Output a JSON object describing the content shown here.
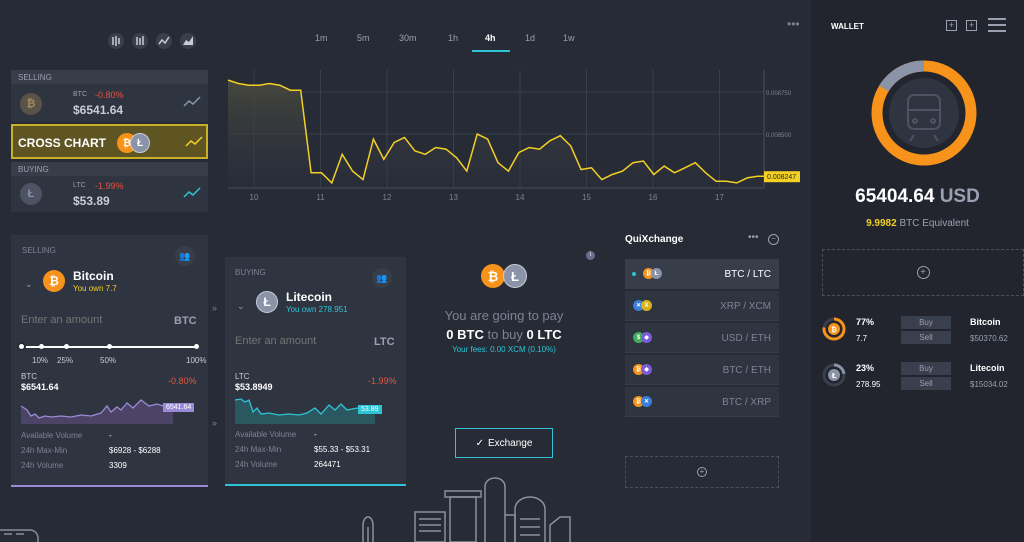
{
  "toolbar": {
    "timeframes": [
      "1m",
      "5m",
      "30m",
      "1h",
      "4h",
      "1d",
      "1w"
    ],
    "active_timeframe": "4h"
  },
  "sidebar": {
    "selling": {
      "header": "SELLING",
      "symbol": "BTC",
      "change": "-0.80%",
      "price": "$6541.64"
    },
    "cross_chart": {
      "label": "CROSS CHART"
    },
    "buying": {
      "header": "BUYING",
      "symbol": "LTC",
      "change": "-1.99%",
      "price": "$53.89"
    }
  },
  "chart_data": {
    "type": "line",
    "x_ticks": [
      "10",
      "11",
      "12",
      "13",
      "14",
      "15",
      "16",
      "17"
    ],
    "y_ticks": [
      "0.008750",
      "0.008500"
    ],
    "current_label": "0.008247",
    "series": [
      {
        "values": [
          0.00882,
          0.0088,
          0.00879,
          0.00879,
          0.0088,
          0.00879,
          0.00876,
          0.00876,
          0.00827,
          0.00827,
          0.00821,
          0.00838,
          0.00828,
          0.00823,
          0.00847,
          0.00835,
          0.00845,
          0.00848,
          0.0084,
          0.00838,
          0.00842,
          0.00841,
          0.00836,
          0.00828,
          0.0085,
          0.00847,
          0.00833,
          0.00828,
          0.00839,
          0.00842,
          0.00841,
          0.00846,
          0.00849,
          0.00843,
          0.00829,
          0.0083,
          0.00823,
          0.00826,
          0.00828,
          0.00833,
          0.00834,
          0.00826,
          0.00831,
          0.00827,
          0.0083,
          0.00833,
          0.00827,
          0.00822,
          0.00822,
          0.00821,
          0.00824,
          0.00825,
          0.00825
        ]
      }
    ]
  },
  "sell_card": {
    "header": "SELLING",
    "coin": "Bitcoin",
    "own": "You own 7.7",
    "amount_placeholder": "Enter an amount",
    "unit": "BTC",
    "slider_labels": [
      "10%",
      "25%",
      "50%",
      "100%"
    ],
    "symbol": "BTC",
    "price": "$6541.64",
    "change": "-0.80%",
    "spark_label": "6541.64",
    "stats": [
      {
        "label": "Available Volume",
        "value": "-"
      },
      {
        "label": "24h Max-Min",
        "value": "$6928 - $6288"
      },
      {
        "label": "24h Volume",
        "value": "3309"
      }
    ]
  },
  "buy_card": {
    "header": "BUYING",
    "coin": "Litecoin",
    "own": "You own 278.951",
    "amount_placeholder": "Enter an amount",
    "unit": "LTC",
    "symbol": "LTC",
    "price": "$53.8949",
    "change": "-1.99%",
    "spark_label": "53.89",
    "stats": [
      {
        "label": "Available Volume",
        "value": "-"
      },
      {
        "label": "24h Max-Min",
        "value": "$55.33 - $53.31"
      },
      {
        "label": "24h Volume",
        "value": "264471"
      }
    ]
  },
  "exchange": {
    "pay_line1": "You are going to pay",
    "amt1": "0 BTC",
    "to_buy": "to buy",
    "amt2": "0 LTC",
    "fees": "Your fees: 0.00 XCM (0.10%)",
    "button": "Exchange"
  },
  "quixchange": {
    "title": "QuiXchange",
    "pairs": [
      "BTC / LTC",
      "XRP / XCM",
      "USD / ETH",
      "BTC / ETH",
      "BTC / XRP"
    ]
  },
  "wallet": {
    "title": "WALLET",
    "total": "65404.64",
    "currency": "USD",
    "btc_equiv": "9.9982",
    "btc_equiv_label": "BTC Equivalent",
    "assets": [
      {
        "pct": "77%",
        "qty": "7.7",
        "buy": "Buy",
        "sell": "Sell",
        "name": "Bitcoin",
        "value": "$50370.62"
      },
      {
        "pct": "23%",
        "qty": "278.95",
        "buy": "Buy",
        "sell": "Sell",
        "name": "Litecoin",
        "value": "$15034.02"
      }
    ]
  }
}
